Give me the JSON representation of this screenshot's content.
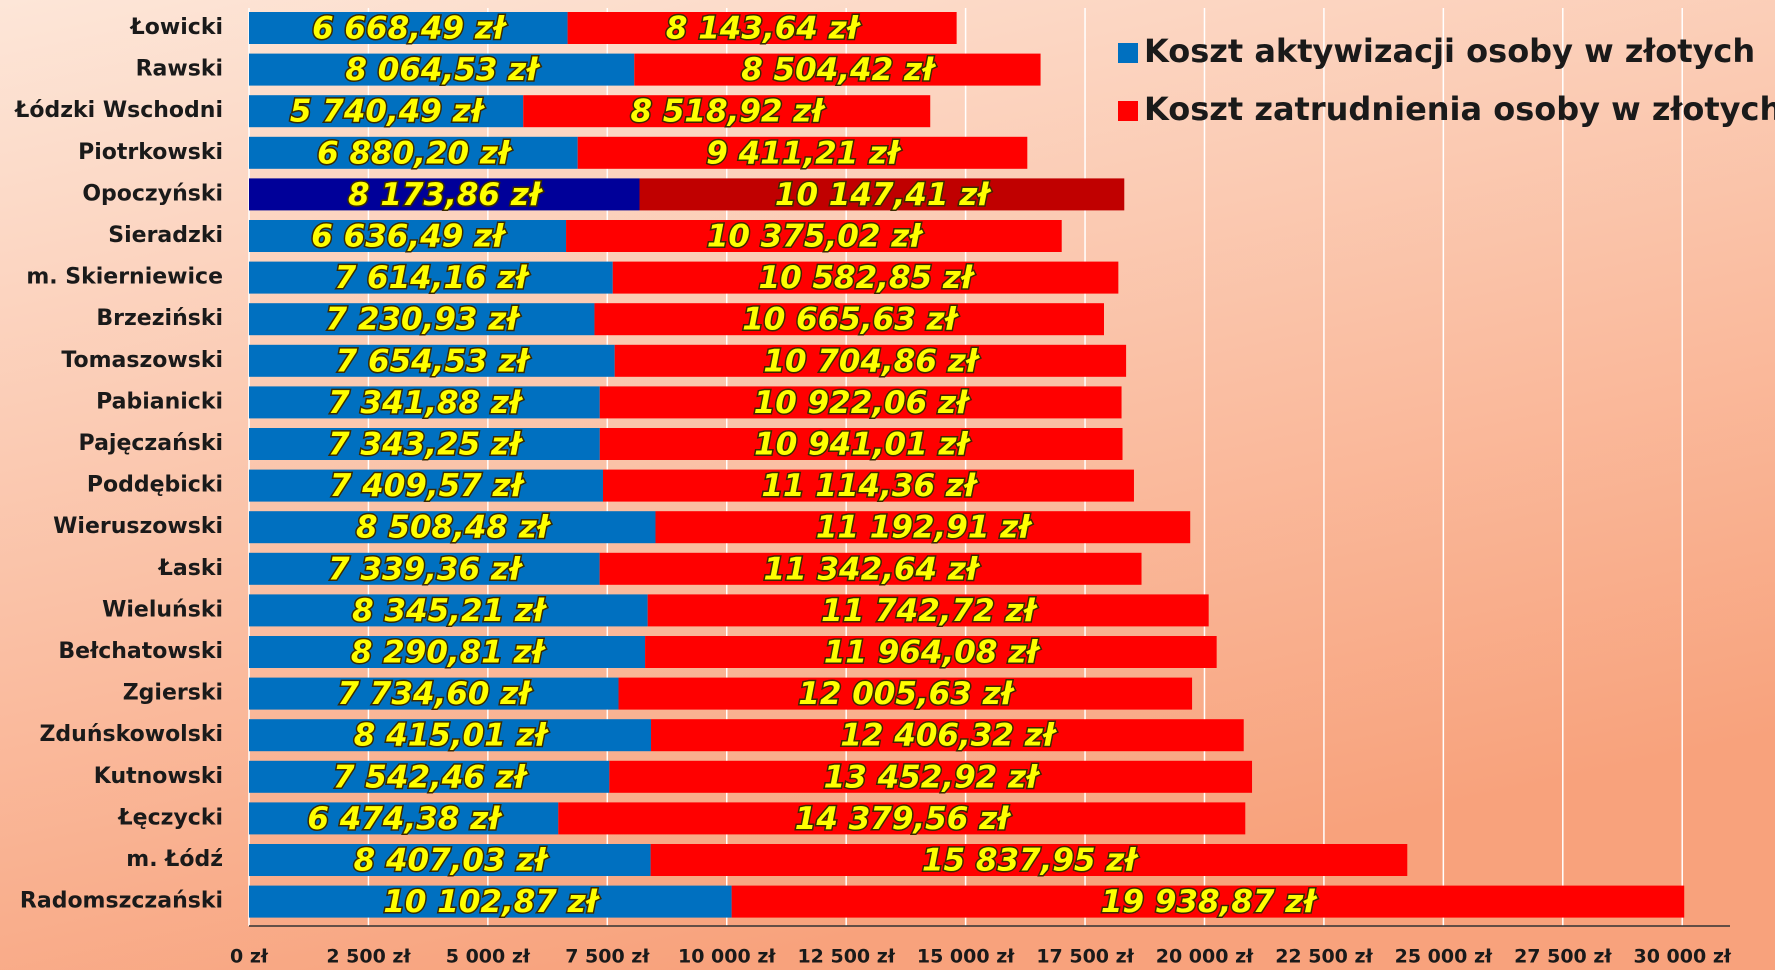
{
  "chart_data": {
    "type": "stacked_barh",
    "categories": [
      "Łowicki",
      "Rawski",
      "Łódzki Wschodni",
      "Piotrkowski",
      "Opoczyński",
      "Sieradzki",
      "m. Skierniewice",
      "Brzeziński",
      "Tomaszowski",
      "Pabianicki",
      "Pajęczański",
      "Poddębicki",
      "Wieruszowski",
      "Łaski",
      "Wieluński",
      "Bełchatowski",
      "Zgierski",
      "Zduńskowolski",
      "Kutnowski",
      "Łęczycki",
      "m. Łódź",
      "Radomszczański"
    ],
    "series": [
      {
        "name": "Koszt aktywizacji osoby w złotych",
        "color": "#0070c0",
        "colors": [
          "#0070c0",
          "#0070c0",
          "#0070c0",
          "#0070c0",
          "#000099",
          "#0070c0",
          "#0070c0",
          "#0070c0",
          "#0070c0",
          "#0070c0",
          "#0070c0",
          "#0070c0",
          "#0070c0",
          "#0070c0",
          "#0070c0",
          "#0070c0",
          "#0070c0",
          "#0070c0",
          "#0070c0",
          "#0070c0",
          "#0070c0",
          "#0070c0"
        ],
        "values": [
          6668.49,
          8064.53,
          5740.49,
          6880.2,
          8173.86,
          6636.49,
          7614.16,
          7230.93,
          7654.53,
          7341.88,
          7343.25,
          7409.57,
          8508.48,
          7339.36,
          8345.21,
          8290.81,
          7734.6,
          8415.01,
          7542.46,
          6474.38,
          8407.03,
          10102.87
        ],
        "value_labels": [
          "6 668,49 zł",
          "8 064,53 zł",
          "5 740,49 zł",
          "6 880,20 zł",
          "8 173,86 zł",
          "6 636,49 zł",
          "7 614,16 zł",
          "7 230,93 zł",
          "7 654,53 zł",
          "7 341,88 zł",
          "7 343,25 zł",
          "7 409,57 zł",
          "8 508,48 zł",
          "7 339,36 zł",
          "8 345,21 zł",
          "8 290,81 zł",
          "7 734,60 zł",
          "8 415,01 zł",
          "7 542,46 zł",
          "6 474,38 zł",
          "8 407,03 zł",
          "10 102,87 zł"
        ]
      },
      {
        "name": "Koszt zatrudnienia osoby w złotych",
        "color": "#ff0000",
        "colors": [
          "#ff0000",
          "#ff0000",
          "#ff0000",
          "#ff0000",
          "#c00000",
          "#ff0000",
          "#ff0000",
          "#ff0000",
          "#ff0000",
          "#ff0000",
          "#ff0000",
          "#ff0000",
          "#ff0000",
          "#ff0000",
          "#ff0000",
          "#ff0000",
          "#ff0000",
          "#ff0000",
          "#ff0000",
          "#ff0000",
          "#ff0000",
          "#ff0000"
        ],
        "values": [
          8143.64,
          8504.42,
          8518.92,
          9411.21,
          10147.41,
          10375.02,
          10582.85,
          10665.63,
          10704.86,
          10922.06,
          10941.01,
          11114.36,
          11192.91,
          11342.64,
          11742.72,
          11964.08,
          12005.63,
          12406.32,
          13452.92,
          14379.56,
          15837.95,
          19938.87
        ],
        "value_labels": [
          "8 143,64 zł",
          "8 504,42 zł",
          "8 518,92 zł",
          "9 411,21 zł",
          "10 147,41 zł",
          "10 375,02 zł",
          "10 582,85 zł",
          "10 665,63 zł",
          "10 704,86 zł",
          "10 922,06 zł",
          "10 941,01 zł",
          "11 114,36 zł",
          "11 192,91 zł",
          "11 342,64 zł",
          "11 742,72 zł",
          "11 964,08 zł",
          "12 005,63 zł",
          "12 406,32 zł",
          "13 452,92 zł",
          "14 379,56 zł",
          "15 837,95 zł",
          "19 938,87 zł"
        ]
      }
    ],
    "xlim": [
      0,
      31000
    ],
    "xticks": [
      {
        "value": 0,
        "label": "0 zł"
      },
      {
        "value": 2500,
        "label": "2 500 zł"
      },
      {
        "value": 5000,
        "label": "5 000 zł"
      },
      {
        "value": 7500,
        "label": "7 500 zł"
      },
      {
        "value": 10000,
        "label": "10 000 zł"
      },
      {
        "value": 12500,
        "label": "12 500 zł"
      },
      {
        "value": 15000,
        "label": "15 000 zł"
      },
      {
        "value": 17500,
        "label": "17 500 zł"
      },
      {
        "value": 20000,
        "label": "20 000 zł"
      },
      {
        "value": 22500,
        "label": "22 500 zł"
      },
      {
        "value": 25000,
        "label": "25 000 zł"
      },
      {
        "value": 27500,
        "label": "27 500 zł"
      },
      {
        "value": 30000,
        "label": "30 000 zł"
      }
    ],
    "grid": true,
    "legend": "upper right"
  }
}
